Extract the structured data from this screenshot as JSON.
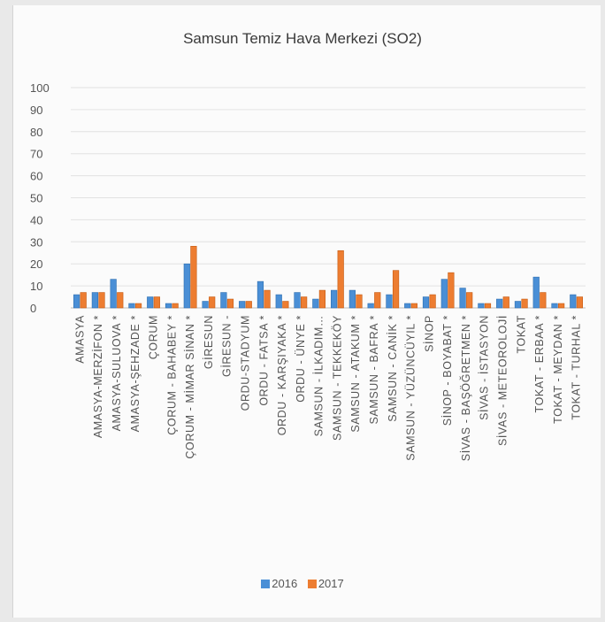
{
  "chart_data": {
    "type": "bar",
    "title": "Samsun Temiz Hava Merkezi (SO2)",
    "xlabel": "",
    "ylabel": "",
    "ylim": [
      0,
      100
    ],
    "yticks": [
      0,
      10,
      20,
      30,
      40,
      50,
      60,
      70,
      80,
      90,
      100
    ],
    "grid": true,
    "legend_position": "bottom",
    "categories": [
      "AMASYA",
      "AMASYA-MERZİFON *",
      "AMASYA-SULUOVA *",
      "AMASYA-ŞEHZADE *",
      "ÇORUM",
      "ÇORUM - BAHABEY *",
      "ÇORUM - MİMAR SİNAN *",
      "GİRESUN",
      "GİRESUN -",
      "ORDU-STADYUM",
      "ORDU - FATSA *",
      "ORDU - KARŞIYAKA *",
      "ORDU - ÜNYE *",
      "SAMSUN - İLKADIM…",
      "SAMSUN - TEKKEKÖY",
      "SAMSUN - ATAKUM *",
      "SAMSUN - BAFRA *",
      "SAMSUN - CANİK *",
      "SAMSUN - YÜZÜNCÜYIL *",
      "SİNOP",
      "SİNOP - BOYABAT *",
      "SİVAS - BAŞÖĞRETMEN *",
      "SİVAS - İSTASYON",
      "SİVAS - METEOROLOJİ",
      "TOKAT",
      "TOKAT - ERBAA *",
      "TOKAT - MEYDAN *",
      "TOKAT - TURHAL *"
    ],
    "series": [
      {
        "name": "2016",
        "color": "#4a8fd6",
        "values": [
          6,
          7,
          13,
          2,
          5,
          2,
          20,
          3,
          7,
          3,
          12,
          6,
          7,
          4,
          8,
          8,
          2,
          6,
          2,
          5,
          13,
          9,
          2,
          4,
          3,
          14,
          2,
          6
        ]
      },
      {
        "name": "2017",
        "color": "#ed7d31",
        "values": [
          7,
          7,
          7,
          2,
          5,
          2,
          28,
          5,
          4,
          3,
          8,
          3,
          5,
          8,
          26,
          6,
          7,
          17,
          2,
          6,
          16,
          7,
          2,
          5,
          4,
          7,
          2,
          5
        ]
      }
    ]
  }
}
